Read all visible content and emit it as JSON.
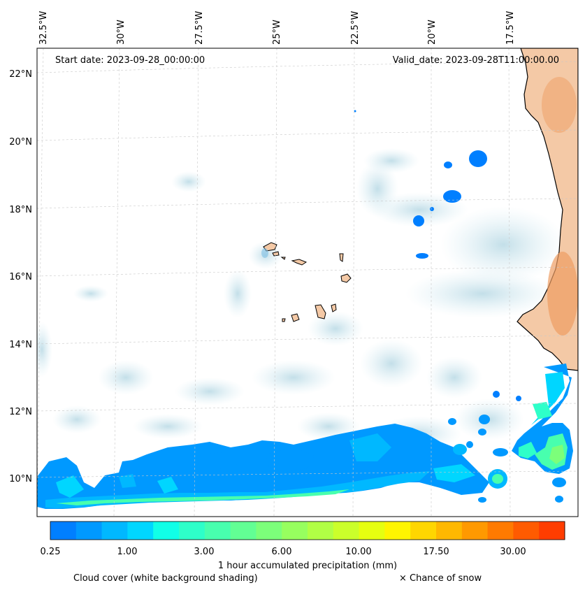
{
  "map": {
    "start_date": "Start date: 2023-09-28_00:00:00",
    "valid_date": "Valid_date: 2023-09-28T11:00:00.00",
    "longitude_labels": [
      "32.5°W",
      "30°W",
      "27.5°W",
      "25°W",
      "22.5°W",
      "20°W",
      "17.5°W"
    ],
    "latitude_labels": [
      "22°N",
      "20°N",
      "18°N",
      "16°N",
      "14°N",
      "12°N",
      "10°N"
    ],
    "gridlines": true,
    "land_color": "#f4c9a6",
    "land_dark_color": "#ee9d62",
    "cloud_color": "#cfe6ee",
    "coastline_color": "#000000"
  },
  "colorbar": {
    "title": "1 hour accumulated precipitation (mm)",
    "tick_labels": [
      "0.25",
      "1.00",
      "3.00",
      "6.00",
      "10.00",
      "17.50",
      "30.00"
    ],
    "colors": [
      "#007fff",
      "#0099ff",
      "#00b8ff",
      "#00d6ff",
      "#11ffe7",
      "#2effc9",
      "#48ffae",
      "#62ff94",
      "#7cff7a",
      "#97ff5f",
      "#b1ff45",
      "#cbff2b",
      "#e6ff10",
      "#fff500",
      "#ffd600",
      "#ffb800",
      "#ff9900",
      "#ff7a00",
      "#ff5b00",
      "#ff3d00"
    ]
  },
  "footer": {
    "cloud_cover_note": "Cloud cover (white background shading)",
    "snow_note": "× Chance of snow"
  }
}
